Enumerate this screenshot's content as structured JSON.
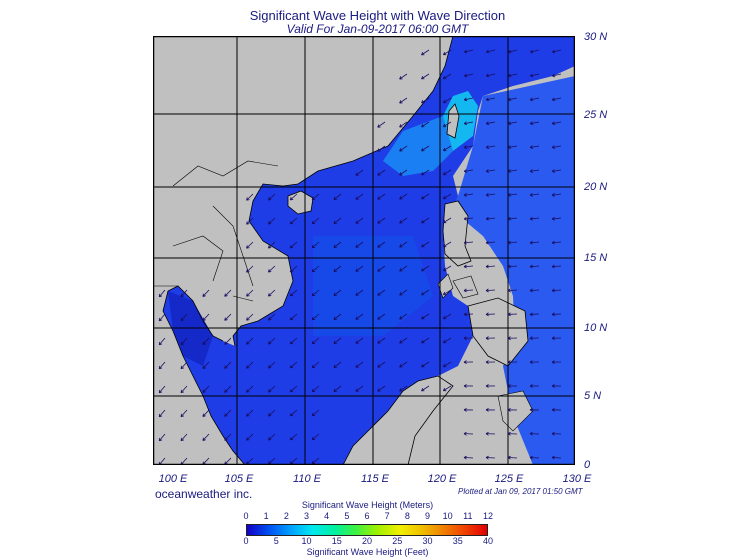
{
  "title": "Significant Wave Height with Wave Direction",
  "subtitle": "Valid For Jan-09-2017 06:00 GMT",
  "lat_labels": [
    "30 N",
    "25 N",
    "20 N",
    "15 N",
    "10 N",
    "5 N",
    "0"
  ],
  "lon_labels": [
    "100 E",
    "105 E",
    "110 E",
    "115 E",
    "120 E",
    "125 E",
    "130 E"
  ],
  "credit": "oceanweather inc.",
  "plotted": "Plotted at Jan 09, 2017 01:50 GMT",
  "legend": {
    "meters_title": "Significant Wave Height (Meters)",
    "meters_ticks": [
      "0",
      "1",
      "2",
      "3",
      "4",
      "5",
      "6",
      "7",
      "8",
      "9",
      "10",
      "11",
      "12"
    ],
    "feet_title": "Significant Wave Height (Feet)",
    "feet_ticks": [
      "0",
      "5",
      "10",
      "15",
      "20",
      "25",
      "30",
      "35",
      "40"
    ],
    "colors": [
      "#1400c8",
      "#0050f0",
      "#00a0ff",
      "#00e8f0",
      "#00f0a0",
      "#40f040",
      "#a0f000",
      "#f0f000",
      "#f0c000",
      "#f08000",
      "#f04000",
      "#e00000"
    ]
  }
}
